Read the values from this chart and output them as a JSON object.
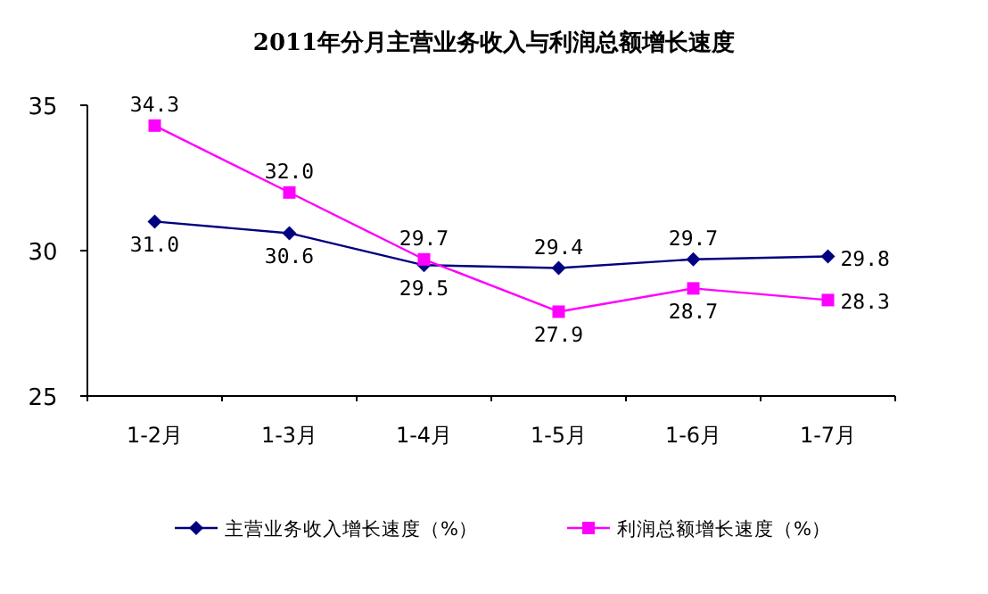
{
  "chart_data": {
    "type": "line",
    "title": "2011年分月主营业务收入与利润总额增长速度",
    "categories": [
      "1-2月",
      "1-3月",
      "1-4月",
      "1-5月",
      "1-6月",
      "1-7月"
    ],
    "series": [
      {
        "name": "主营业务收入增长速度（%）",
        "color": "#000080",
        "marker": "diamond",
        "values": [
          31.0,
          30.6,
          29.5,
          29.4,
          29.7,
          29.8
        ],
        "value_labels": [
          "31.0",
          "30.6",
          "29.5",
          "29.4",
          "29.7",
          "29.8"
        ]
      },
      {
        "name": "利润总额增长速度（%）",
        "color": "#ff00ff",
        "marker": "square",
        "values": [
          34.3,
          32.0,
          29.7,
          27.9,
          28.7,
          28.3
        ],
        "value_labels": [
          "34.3",
          "32.0",
          "29.7",
          "27.9",
          "28.7",
          "28.3"
        ]
      }
    ],
    "ylim": [
      25,
      35
    ],
    "yticks": [
      25,
      30,
      35
    ],
    "grid": false,
    "legend": "bottom"
  }
}
